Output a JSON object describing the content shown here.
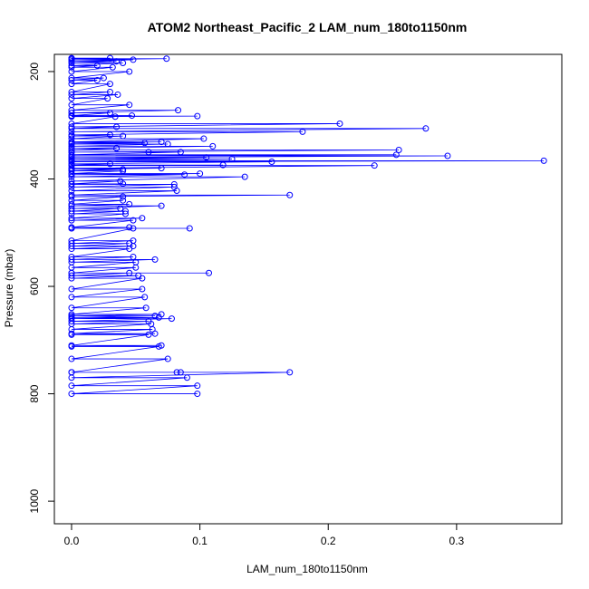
{
  "chart_data": {
    "type": "line",
    "title": "ATOM2 Northeast_Pacific_2 LAM_num_180to1150nm",
    "xlabel": "LAM_num_180to1150nm",
    "ylabel": "Pressure (mbar)",
    "color": "#0000ff",
    "xlim": [
      -0.0134,
      0.382
    ],
    "ylim": [
      1042,
      168
    ],
    "xticks": [
      {
        "value": 0,
        "label": "0.0"
      },
      0.1,
      0.2,
      0.3
    ],
    "yticks": [
      200,
      400,
      600,
      800,
      1000
    ],
    "x": [
      0,
      0.03,
      0,
      0.074,
      0,
      0.048,
      0,
      0.035,
      0,
      0.04,
      0,
      0.02,
      0,
      0.032,
      0,
      0.045,
      0,
      0.025,
      0,
      0.02,
      0,
      0.03,
      0,
      0.03,
      0,
      0.036,
      0,
      0.028,
      0,
      0.045,
      0,
      0.083,
      0,
      0.03,
      0,
      0.047,
      0,
      0.098,
      0,
      0.034,
      0,
      0.209,
      0,
      0.035,
      0,
      0.276,
      0,
      0.18,
      0,
      0.03,
      0,
      0.04,
      0,
      0.103,
      0,
      0.07,
      0,
      0.057,
      0,
      0.075,
      0,
      0.11,
      0,
      0.035,
      0,
      0.255,
      0,
      0.06,
      0,
      0.085,
      0,
      0.253,
      0,
      0.293,
      0,
      0.105,
      0,
      0.125,
      0,
      0.368,
      0,
      0.156,
      0,
      0.03,
      0,
      0.118,
      0,
      0.236,
      0,
      0.07,
      0,
      0.04,
      0,
      0.04,
      0,
      0.1,
      0,
      0.088,
      0,
      0.135,
      0,
      0.038,
      0,
      0.04,
      0,
      0.08,
      0,
      0.08,
      0,
      0.082,
      0,
      0.17,
      0,
      0.04,
      0,
      0.04,
      0,
      0.045,
      0,
      0.07,
      0,
      0.038,
      0,
      0.042,
      0,
      0.042,
      0,
      0.055,
      0,
      0.048,
      0,
      0.045,
      0,
      0.092,
      0,
      0.048,
      0,
      0.048,
      0,
      0.045,
      0,
      0.048,
      0,
      0.045,
      0,
      0.048,
      0,
      0.065,
      0,
      0.05,
      0,
      0.05,
      0,
      0.107,
      0,
      0.045,
      0,
      0.052,
      0,
      0.055,
      0,
      0.055,
      0,
      0.057,
      0,
      0.058,
      0,
      0.07,
      0,
      0.065,
      0,
      0.068,
      0,
      0.078,
      0,
      0.06,
      0,
      0.062,
      0,
      0.063,
      0,
      0.065,
      0,
      0.06,
      0,
      0.07,
      0,
      0.068,
      0,
      0.075,
      0,
      0.082,
      0,
      0.085,
      0,
      0.17,
      0,
      0.09,
      0,
      0.098,
      0,
      0.098
    ],
    "y": [
      175,
      175,
      176,
      176,
      178,
      178,
      181,
      181,
      184,
      184,
      189,
      189,
      192,
      192,
      200,
      200,
      212,
      212,
      216,
      216,
      223,
      223,
      238,
      238,
      243,
      243,
      250,
      250,
      262,
      262,
      272,
      272,
      277,
      277,
      282,
      282,
      283,
      283,
      284,
      284,
      297,
      297,
      303,
      303,
      306,
      306,
      312,
      312,
      318,
      318,
      320,
      320,
      325,
      325,
      331,
      331,
      333,
      333,
      335,
      335,
      339,
      339,
      343,
      343,
      346,
      346,
      350,
      350,
      350,
      350,
      355,
      355,
      357,
      357,
      360,
      360,
      363,
      363,
      366,
      366,
      368,
      368,
      372,
      372,
      374,
      374,
      375,
      375,
      380,
      380,
      382,
      382,
      385,
      385,
      390,
      390,
      392,
      392,
      396,
      396,
      404,
      404,
      409,
      409,
      410,
      410,
      415,
      415,
      422,
      422,
      430,
      430,
      433,
      433,
      440,
      440,
      447,
      447,
      450,
      450,
      455,
      455,
      460,
      460,
      465,
      465,
      473,
      473,
      477,
      477,
      490,
      490,
      492,
      492,
      492,
      492,
      515,
      515,
      520,
      520,
      525,
      525,
      530,
      530,
      545,
      545,
      550,
      550,
      555,
      555,
      565,
      565,
      575,
      575,
      575,
      575,
      580,
      580,
      585,
      585,
      605,
      605,
      620,
      620,
      640,
      640,
      652,
      652,
      655,
      655,
      658,
      658,
      660,
      660,
      665,
      665,
      670,
      670,
      680,
      680,
      688,
      688,
      690,
      690,
      710,
      710,
      712,
      712,
      735,
      735,
      760,
      760,
      760,
      760,
      760,
      760,
      770,
      770,
      785,
      785,
      800,
      800
    ]
  }
}
